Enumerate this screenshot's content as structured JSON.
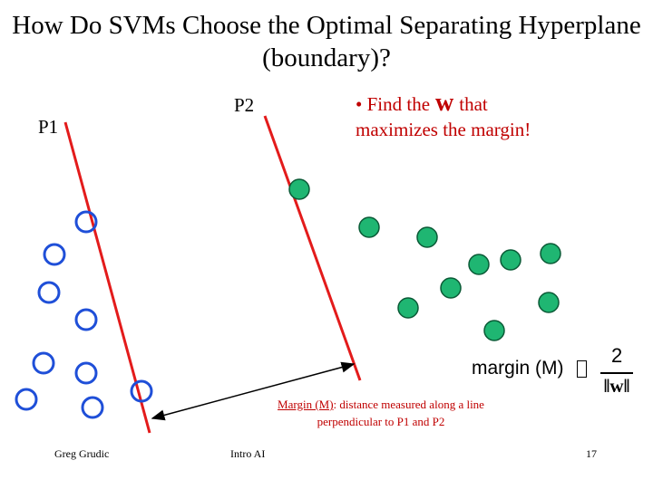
{
  "title": "How Do SVMs Choose the Optimal Separating Hyperplane (boundary)?",
  "labels": {
    "p1": "P1",
    "p2": "P2"
  },
  "bullet": {
    "prefix": "• Find the",
    "w": "w",
    "suffix": "that",
    "line2": "maximizes the margin!"
  },
  "margin_annotation": {
    "term": "Margin (M)",
    "rest": ": distance measured along a line perpendicular to P1 and P2"
  },
  "formula": {
    "lhs": "margin (M)",
    "numerator": "2",
    "denominator": "‖w‖"
  },
  "footer": {
    "author": "Greg Grudic",
    "course": "Intro AI",
    "page": "17"
  },
  "colors": {
    "line": "#e31b1b",
    "class_a": "#1f4fd8",
    "class_b_fill": "#1fb672",
    "class_b_stroke": "#0a5a36",
    "highlight": "#c00000"
  }
}
